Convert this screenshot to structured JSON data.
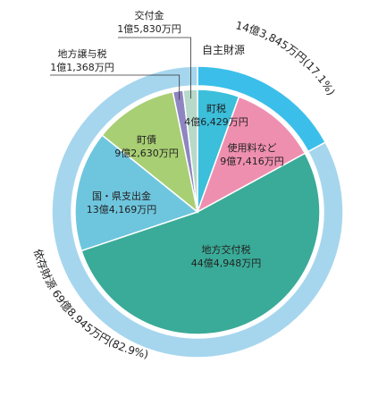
{
  "chart_data": {
    "type": "pie",
    "title": "",
    "outer_ring": [
      {
        "name": "自主財源",
        "value_label": "14億3,845万円",
        "percent_label": "(17.1%)",
        "value": 143845,
        "color": "#3bbfea"
      },
      {
        "name": "依存財源",
        "value_label": "69億8,945万円",
        "percent_label": "(82.9%)",
        "value": 698945,
        "color": "#a6d6ee"
      }
    ],
    "slices": [
      {
        "name": "町税",
        "value_label": "4億6,429万円",
        "value": 46429,
        "group": "自主財源",
        "color": "#3bbfdb"
      },
      {
        "name": "使用料など",
        "value_label": "9億7,416万円",
        "value": 97416,
        "group": "自主財源",
        "color": "#ef8fb0"
      },
      {
        "name": "地方交付税",
        "value_label": "44億4,948万円",
        "value": 444948,
        "group": "依存財源",
        "color": "#3aab98"
      },
      {
        "name": "国・県支出金",
        "value_label": "13億4,169万円",
        "value": 134169,
        "group": "依存財源",
        "color": "#6ec6de"
      },
      {
        "name": "町債",
        "value_label": "9億2,630万円",
        "value": 92630,
        "group": "依存財源",
        "color": "#a8cf73"
      },
      {
        "name": "地方譲与税",
        "value_label": "1億1,368万円",
        "value": 11368,
        "group": "依存財源",
        "color": "#8f85c2"
      },
      {
        "name": "交付金",
        "value_label": "1億5,830万円",
        "value": 15830,
        "group": "依存財源",
        "color": "#b6d9c9"
      }
    ]
  }
}
